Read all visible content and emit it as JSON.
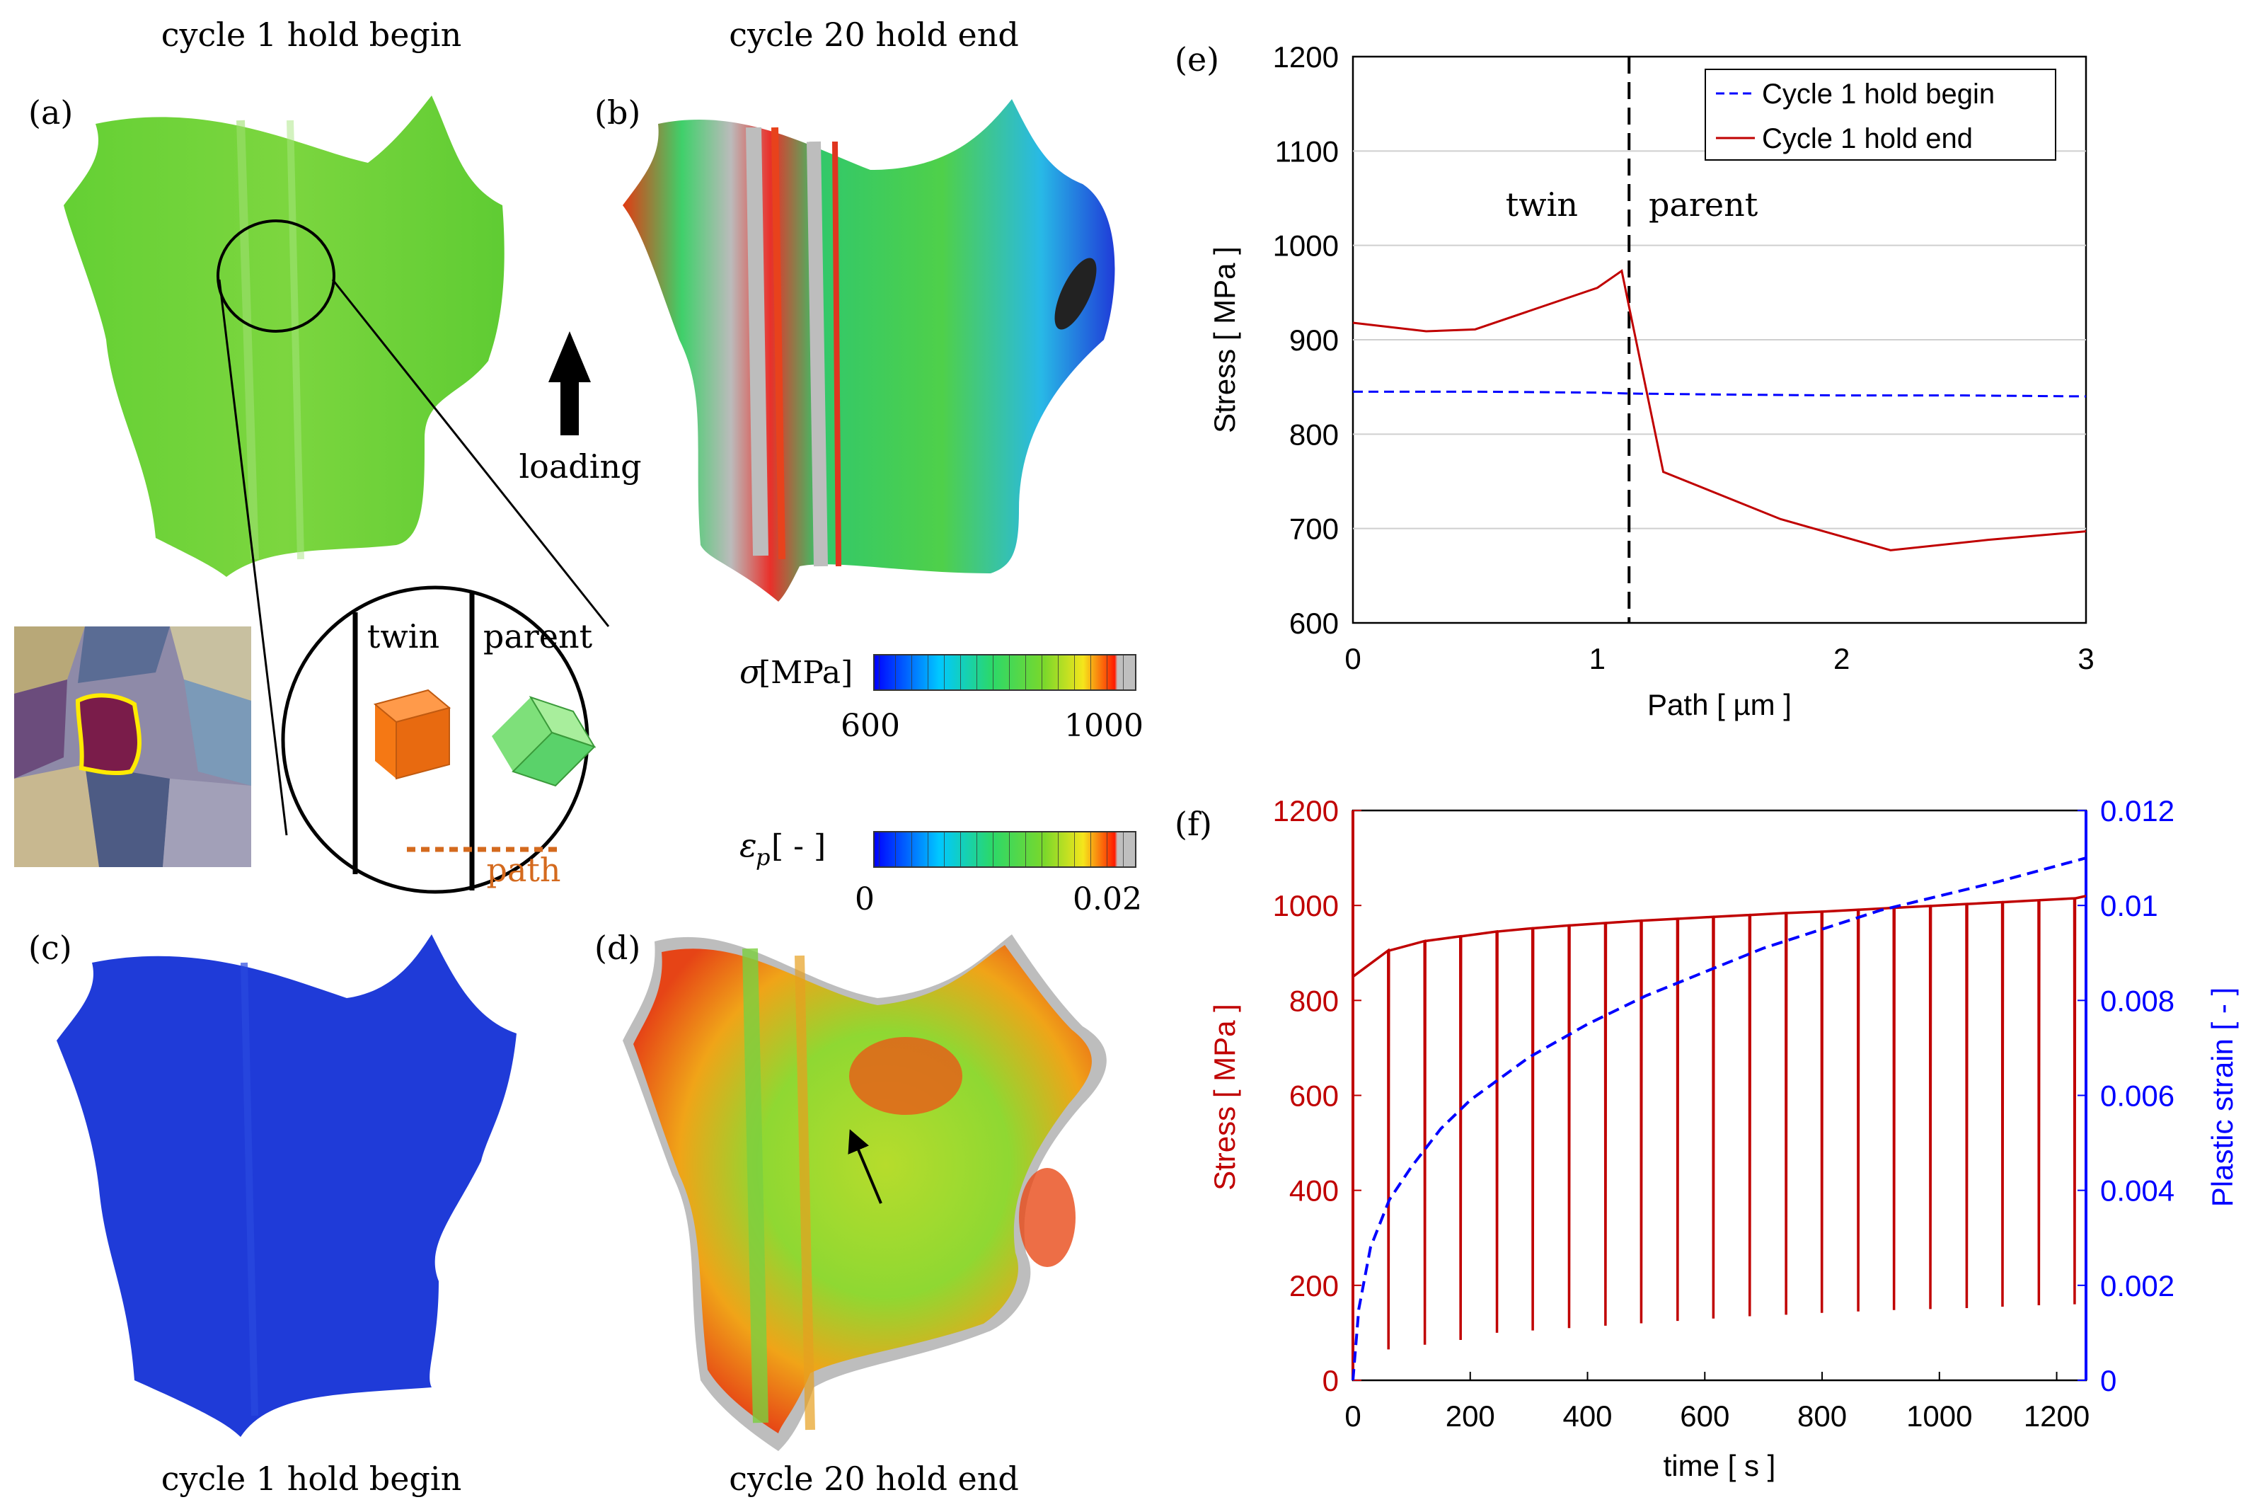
{
  "panels": {
    "a": {
      "label": "(a)",
      "title": "cycle 1 hold begin"
    },
    "b": {
      "label": "(b)",
      "title": "cycle 20 hold end"
    },
    "c": {
      "label": "(c)",
      "title": "cycle 1 hold begin"
    },
    "d": {
      "label": "(d)",
      "title": "cycle 20 hold end"
    },
    "e": {
      "label": "(e)"
    },
    "f": {
      "label": "(f)"
    }
  },
  "loading_label": "loading",
  "inset": {
    "twin": "twin",
    "parent": "parent",
    "path": "path"
  },
  "colorbars": {
    "stress": {
      "symbol": "σ",
      "unit": "[MPa]",
      "min": "600",
      "max": "1000"
    },
    "strain": {
      "symbol": "ε",
      "sub": "p",
      "unit": "[ - ]",
      "min": "0",
      "max": "0.02"
    }
  },
  "colors": {
    "red": "#c00000",
    "blue": "#0000ff",
    "orange": "#d46a1e",
    "field_green": "#6fd23a",
    "field_blue": "#1f3bd8"
  },
  "chart_data": [
    {
      "type": "line",
      "xlabel": "Path [ µm ]",
      "ylabel": "Stress [ MPa ]",
      "xlim": [
        0,
        3
      ],
      "ylim": [
        600,
        1200
      ],
      "xticks": [
        "0",
        "1",
        "2",
        "3"
      ],
      "yticks": [
        "600",
        "700",
        "800",
        "900",
        "1000",
        "1100",
        "1200"
      ],
      "grid": true,
      "legend": "top-right",
      "annotations": {
        "twin": "twin",
        "parent": "parent",
        "interface_x": 1.13
      },
      "series": [
        {
          "name": "Cycle 1 hold begin",
          "style": "dashed",
          "color": "#0000ff",
          "x": [
            0,
            0.5,
            1.0,
            1.13,
            1.5,
            2.0,
            2.5,
            3.0
          ],
          "y": [
            845,
            845,
            844,
            843,
            842,
            841,
            841,
            840
          ]
        },
        {
          "name": "Cycle 1 hold end",
          "style": "solid",
          "color": "#c00000",
          "x": [
            0,
            0.3,
            0.5,
            1.0,
            1.1,
            1.13,
            1.27,
            1.75,
            2.2,
            2.6,
            3.0
          ],
          "y": [
            918,
            909,
            911,
            955,
            973,
            935,
            760,
            710,
            677,
            688,
            697
          ]
        }
      ]
    },
    {
      "type": "line",
      "xlabel": "time [ s ]",
      "ylabel": "Stress [ MPa ]",
      "y2label": "Plastic strain [ - ]",
      "xlim": [
        0,
        1250
      ],
      "ylim": [
        0,
        1200
      ],
      "y2lim": [
        0,
        0.012
      ],
      "xticks": [
        "0",
        "200",
        "400",
        "600",
        "800",
        "1000",
        "1200"
      ],
      "yticks": [
        "0",
        "200",
        "400",
        "600",
        "800",
        "1000",
        "1200"
      ],
      "y2ticks": [
        "0",
        "0.002",
        "0.004",
        "0.006",
        "0.008",
        "0.01",
        "0.012"
      ],
      "grid": false,
      "series": [
        {
          "name": "",
          "axis": "left",
          "style": "solid",
          "color": "#c00000",
          "hold_start": [
            0,
            62,
            123,
            185,
            246,
            308,
            370,
            431,
            493,
            554,
            616,
            678,
            739,
            801,
            862,
            924,
            986,
            1047,
            1109,
            1170,
            1232
          ],
          "hold_stress_begin": [
            850,
            905,
            925,
            935,
            945,
            952,
            958,
            963,
            968,
            972,
            976,
            980,
            984,
            987,
            991,
            995,
            999,
            1003,
            1007,
            1011,
            1015
          ],
          "hold_stress_end": [
            905,
            925,
            935,
            945,
            952,
            958,
            963,
            968,
            972,
            976,
            980,
            984,
            987,
            991,
            995,
            999,
            1003,
            1007,
            1011,
            1015,
            1020
          ],
          "unload_min": [
            65,
            75,
            85,
            100,
            105,
            110,
            115,
            120,
            125,
            130,
            135,
            138,
            142,
            145,
            148,
            150,
            152,
            155,
            158,
            160,
            162
          ]
        },
        {
          "name": "",
          "axis": "right",
          "style": "dashed",
          "color": "#0000ff",
          "x": [
            0,
            10,
            30,
            62,
            100,
            150,
            200,
            300,
            400,
            500,
            600,
            700,
            800,
            900,
            1000,
            1100,
            1250
          ],
          "y": [
            0,
            0.0015,
            0.0028,
            0.0038,
            0.0045,
            0.0053,
            0.0059,
            0.0068,
            0.0075,
            0.0081,
            0.0086,
            0.0091,
            0.0095,
            0.0099,
            0.0102,
            0.0105,
            0.011
          ]
        }
      ]
    }
  ]
}
